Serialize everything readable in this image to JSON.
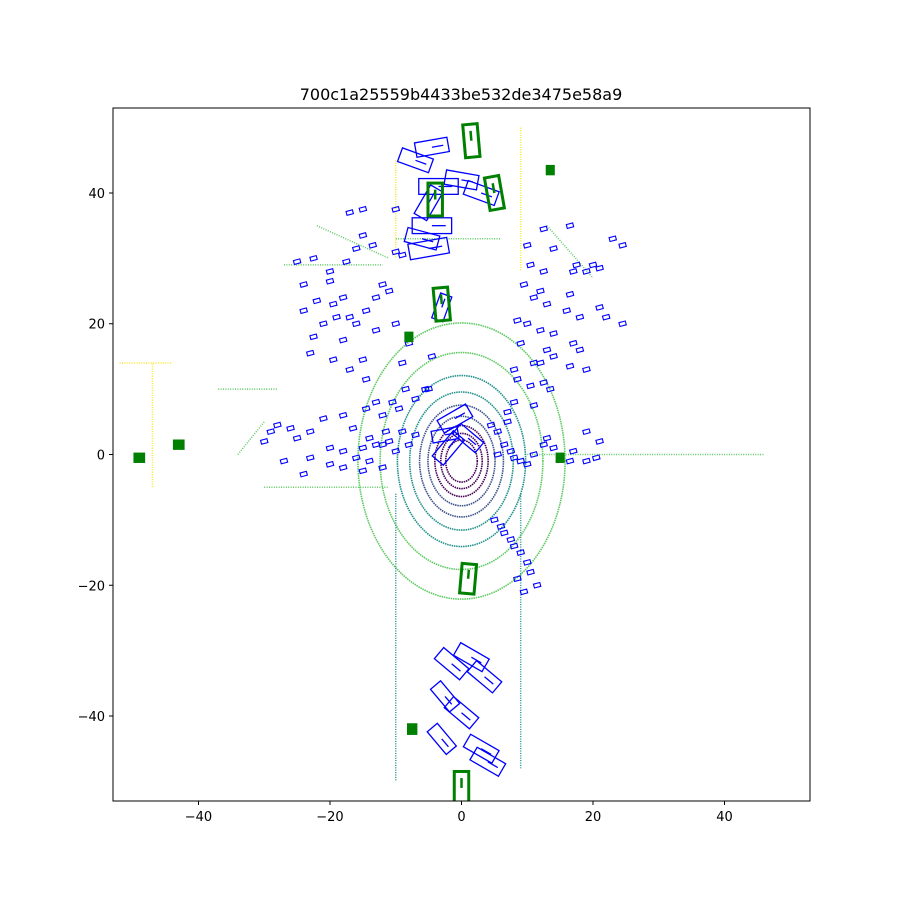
{
  "chart_data": {
    "type": "scatter",
    "title": "700c1a25559b4433be532de3475e58a9",
    "xlabel": "",
    "ylabel": "",
    "xlim": [
      -53,
      53
    ],
    "ylim": [
      -53,
      53
    ],
    "xticks": [
      -40,
      -20,
      0,
      20,
      40
    ],
    "yticks": [
      -40,
      -20,
      0,
      20,
      40
    ],
    "xtick_labels": [
      "−40",
      "−20",
      "0",
      "20",
      "40"
    ],
    "ytick_labels": [
      "−40",
      "−20",
      "0",
      "20",
      "40"
    ],
    "grid": false,
    "legend": "none",
    "colors": {
      "blue_boxes": "#0000ff",
      "green_boxes": "#008000",
      "colormap": [
        "#440154",
        "#3b528b",
        "#21918c",
        "#5ec962",
        "#fde725"
      ]
    },
    "lidar_rings": [
      {
        "r": 3.2,
        "c": 0
      },
      {
        "r": 4.2,
        "c": 0
      },
      {
        "r": 5.4,
        "c": 0
      },
      {
        "r": 6.8,
        "c": 1
      },
      {
        "r": 8.5,
        "c": 1
      },
      {
        "r": 10.5,
        "c": 2
      },
      {
        "r": 13.0,
        "c": 2
      },
      {
        "r": 16.5,
        "c": 3
      },
      {
        "r": 21.0,
        "c": 3
      }
    ],
    "lidar_segments": [
      {
        "from": [
          -27,
          29
        ],
        "to": [
          -12,
          29
        ],
        "c": 3
      },
      {
        "from": [
          -10,
          33
        ],
        "to": [
          6,
          33
        ],
        "c": 3
      },
      {
        "from": [
          -37,
          10
        ],
        "to": [
          -28,
          10
        ],
        "c": 3
      },
      {
        "from": [
          -34,
          0
        ],
        "to": [
          -30,
          5
        ],
        "c": 3
      },
      {
        "from": [
          -47,
          -5
        ],
        "to": [
          -47,
          14
        ],
        "c": 4
      },
      {
        "from": [
          -52,
          14
        ],
        "to": [
          -44,
          14
        ],
        "c": 4
      },
      {
        "from": [
          -10,
          45
        ],
        "to": [
          -10,
          30
        ],
        "c": 4
      },
      {
        "from": [
          9,
          50
        ],
        "to": [
          9,
          28
        ],
        "c": 4
      },
      {
        "from": [
          -10,
          -6
        ],
        "to": [
          -10,
          -50
        ],
        "c": 2
      },
      {
        "from": [
          9,
          -6
        ],
        "to": [
          9,
          -48
        ],
        "c": 2
      },
      {
        "from": [
          10,
          0
        ],
        "to": [
          46,
          0
        ],
        "c": 3
      },
      {
        "from": [
          -30,
          -5
        ],
        "to": [
          -11,
          -5
        ],
        "c": 3
      },
      {
        "from": [
          -22,
          35
        ],
        "to": [
          -11,
          30
        ],
        "c": 3
      },
      {
        "from": [
          13,
          35
        ],
        "to": [
          20,
          27
        ],
        "c": 3
      }
    ],
    "blue_boxes": [
      {
        "x": -4.5,
        "y": 47,
        "w": 5,
        "h": 2.2,
        "a": 10
      },
      {
        "x": -7,
        "y": 45,
        "w": 5,
        "h": 2.2,
        "a": -20
      },
      {
        "x": -3.5,
        "y": 41,
        "w": 6,
        "h": 2.4,
        "a": 0
      },
      {
        "x": -5,
        "y": 38.5,
        "w": 5,
        "h": 2.2,
        "a": 60
      },
      {
        "x": 0,
        "y": 42,
        "w": 5,
        "h": 2.2,
        "a": -10
      },
      {
        "x": 3,
        "y": 40,
        "w": 5,
        "h": 2.2,
        "a": -20
      },
      {
        "x": -4.5,
        "y": 35,
        "w": 6,
        "h": 2.4,
        "a": 0
      },
      {
        "x": -5,
        "y": 31.5,
        "w": 6,
        "h": 2.4,
        "a": 10
      },
      {
        "x": -6,
        "y": 33,
        "w": 5,
        "h": 2.2,
        "a": -15
      },
      {
        "x": -3,
        "y": 22.5,
        "w": 4,
        "h": 1.8,
        "a": 70
      },
      {
        "x": -1,
        "y": 5.5,
        "w": 5,
        "h": 2.2,
        "a": 30
      },
      {
        "x": -2,
        "y": 1,
        "w": 5,
        "h": 2.2,
        "a": 50
      },
      {
        "x": 1,
        "y": 2.5,
        "w": 4.5,
        "h": 2,
        "a": -40
      },
      {
        "x": -2.5,
        "y": 3,
        "w": 4,
        "h": 1.8,
        "a": 10
      },
      {
        "x": -1.5,
        "y": -32,
        "w": 5,
        "h": 2.2,
        "a": -40
      },
      {
        "x": 1.5,
        "y": -31,
        "w": 5,
        "h": 2.2,
        "a": -30
      },
      {
        "x": 3.5,
        "y": -34,
        "w": 5,
        "h": 2.2,
        "a": -40
      },
      {
        "x": -2.5,
        "y": -37,
        "w": 4.5,
        "h": 2,
        "a": -50
      },
      {
        "x": 0,
        "y": -39.5,
        "w": 5,
        "h": 2.2,
        "a": -40
      },
      {
        "x": -3,
        "y": -43.5,
        "w": 4.5,
        "h": 2,
        "a": -50
      },
      {
        "x": 3,
        "y": -45,
        "w": 5,
        "h": 2.2,
        "a": -30
      },
      {
        "x": 4,
        "y": -47,
        "w": 5,
        "h": 2.2,
        "a": -30
      }
    ],
    "green_boxes": [
      {
        "x": 1.5,
        "y": 48,
        "w": 2.2,
        "h": 5,
        "a": 5
      },
      {
        "x": 5,
        "y": 40,
        "w": 2.2,
        "h": 5,
        "a": 10
      },
      {
        "x": -4,
        "y": 39,
        "w": 2.2,
        "h": 5,
        "a": 0
      },
      {
        "x": -3,
        "y": 23,
        "w": 2.2,
        "h": 5,
        "a": 5
      },
      {
        "x": 1,
        "y": -19,
        "w": 2.2,
        "h": 4.5,
        "a": -5
      },
      {
        "x": 0,
        "y": -51,
        "w": 2.2,
        "h": 5,
        "a": 0
      },
      {
        "x": -49,
        "y": -0.5,
        "w": 1.4,
        "h": 1.2,
        "a": 0
      },
      {
        "x": -43,
        "y": 1.5,
        "w": 1.4,
        "h": 1.2,
        "a": 0
      },
      {
        "x": -7.5,
        "y": -42,
        "w": 1.2,
        "h": 1.4,
        "a": 0
      },
      {
        "x": 13.5,
        "y": 43.5,
        "w": 1.0,
        "h": 1.2,
        "a": 0
      },
      {
        "x": -8,
        "y": 18,
        "w": 1.0,
        "h": 1.2,
        "a": 0
      },
      {
        "x": 15,
        "y": -0.5,
        "w": 1.0,
        "h": 1.2,
        "a": 0
      }
    ],
    "small_blue_boxes": [
      [
        -25,
        29.5
      ],
      [
        -22.5,
        30
      ],
      [
        -20,
        28
      ],
      [
        -17.5,
        29.5
      ],
      [
        -16,
        31.5
      ],
      [
        -15,
        33.5
      ],
      [
        -13.5,
        32
      ],
      [
        -10,
        31
      ],
      [
        -9,
        30.5
      ],
      [
        -17,
        37
      ],
      [
        -15,
        37.5
      ],
      [
        -10,
        37.5
      ],
      [
        10,
        32
      ],
      [
        12.5,
        34.5
      ],
      [
        14,
        31.5
      ],
      [
        16.5,
        35
      ],
      [
        17.5,
        29
      ],
      [
        19,
        28
      ],
      [
        17,
        28
      ],
      [
        20,
        29
      ],
      [
        21,
        28.5
      ],
      [
        16.5,
        24.5
      ],
      [
        16,
        22
      ],
      [
        18,
        21
      ],
      [
        21,
        22.5
      ],
      [
        22,
        21
      ],
      [
        24.5,
        20
      ],
      [
        12,
        25
      ],
      [
        11,
        24
      ],
      [
        13,
        23
      ],
      [
        9.5,
        26
      ],
      [
        10.5,
        29
      ],
      [
        12.5,
        28
      ],
      [
        23,
        33
      ],
      [
        24.5,
        32
      ],
      [
        -24,
        26
      ],
      [
        -20,
        26.5
      ],
      [
        -18,
        24
      ],
      [
        -22,
        23.5
      ],
      [
        -19.5,
        23
      ],
      [
        -17,
        21
      ],
      [
        -14.5,
        22
      ],
      [
        -12,
        26
      ],
      [
        -11,
        25
      ],
      [
        -13,
        24
      ],
      [
        -24,
        22
      ],
      [
        -21,
        20
      ],
      [
        -19,
        21
      ],
      [
        -16,
        20
      ],
      [
        -13,
        19
      ],
      [
        -10,
        20
      ],
      [
        -8,
        17
      ],
      [
        -9,
        14
      ],
      [
        -4.5,
        15
      ],
      [
        -18,
        17.5
      ],
      [
        -22.5,
        18
      ],
      [
        -23,
        15.5
      ],
      [
        -19.5,
        14.5
      ],
      [
        -17,
        13
      ],
      [
        -15,
        14.5
      ],
      [
        -14.5,
        11.5
      ],
      [
        -13,
        8
      ],
      [
        -14.5,
        7
      ],
      [
        -12,
        6
      ],
      [
        -10.5,
        8
      ],
      [
        -9.5,
        7
      ],
      [
        -5,
        10
      ],
      [
        -7,
        8.5
      ],
      [
        -8.5,
        10
      ],
      [
        10,
        20
      ],
      [
        8.5,
        20.5
      ],
      [
        12,
        19
      ],
      [
        14,
        18.5
      ],
      [
        17,
        17
      ],
      [
        18,
        16
      ],
      [
        13,
        16
      ],
      [
        11,
        14
      ],
      [
        9,
        17
      ],
      [
        8,
        13
      ],
      [
        12,
        14
      ],
      [
        14,
        15
      ],
      [
        16.5,
        13.5
      ],
      [
        19,
        13
      ],
      [
        12.5,
        11
      ],
      [
        10.5,
        10.5
      ],
      [
        13.5,
        10
      ],
      [
        8.5,
        11.5
      ],
      [
        11,
        7.5
      ],
      [
        8,
        8
      ],
      [
        7,
        6.5
      ],
      [
        -5.5,
        10
      ],
      [
        -30,
        2
      ],
      [
        -29,
        3.5
      ],
      [
        -28,
        4.5
      ],
      [
        -26,
        4
      ],
      [
        -25,
        2.5
      ],
      [
        -23,
        3.5
      ],
      [
        -21,
        5.5
      ],
      [
        -18,
        6
      ],
      [
        -16.5,
        4
      ],
      [
        -14,
        2.5
      ],
      [
        -12,
        1.5
      ],
      [
        -9,
        3.5
      ],
      [
        -8,
        1.5
      ],
      [
        -7,
        3
      ],
      [
        -20,
        1
      ],
      [
        -18,
        0.5
      ],
      [
        -16,
        -0.5
      ],
      [
        -14,
        -1
      ],
      [
        -13,
        1.5
      ],
      [
        -11.5,
        3.5
      ],
      [
        -10,
        0.5
      ],
      [
        -12,
        -2
      ],
      [
        -15,
        -2.5
      ],
      [
        -18,
        -2
      ],
      [
        -20,
        -1.5
      ],
      [
        -23,
        -0.5
      ],
      [
        -27,
        -1
      ],
      [
        -24,
        -3
      ],
      [
        -15,
        1
      ],
      [
        -11,
        2
      ],
      [
        5.5,
        3.5
      ],
      [
        6.5,
        1.5
      ],
      [
        5.5,
        0
      ],
      [
        7.5,
        0.5
      ],
      [
        8,
        -0.5
      ],
      [
        9,
        -1
      ],
      [
        10,
        -1.5
      ],
      [
        11,
        0
      ],
      [
        12.5,
        1.5
      ],
      [
        7,
        5
      ],
      [
        4.5,
        4.5
      ],
      [
        13,
        2.5
      ],
      [
        14,
        1
      ],
      [
        16.5,
        -1
      ],
      [
        17,
        0.5
      ],
      [
        19,
        -1
      ],
      [
        20.5,
        -0.5
      ],
      [
        21,
        2
      ],
      [
        19,
        3.5
      ],
      [
        5,
        -10
      ],
      [
        6,
        -11
      ],
      [
        6.5,
        -12
      ],
      [
        7.5,
        -13
      ],
      [
        8,
        -14
      ],
      [
        9,
        -15
      ],
      [
        10,
        -16.5
      ],
      [
        10.5,
        -18
      ],
      [
        11.5,
        -20
      ],
      [
        8.5,
        -19
      ],
      [
        9.5,
        -21
      ]
    ]
  }
}
